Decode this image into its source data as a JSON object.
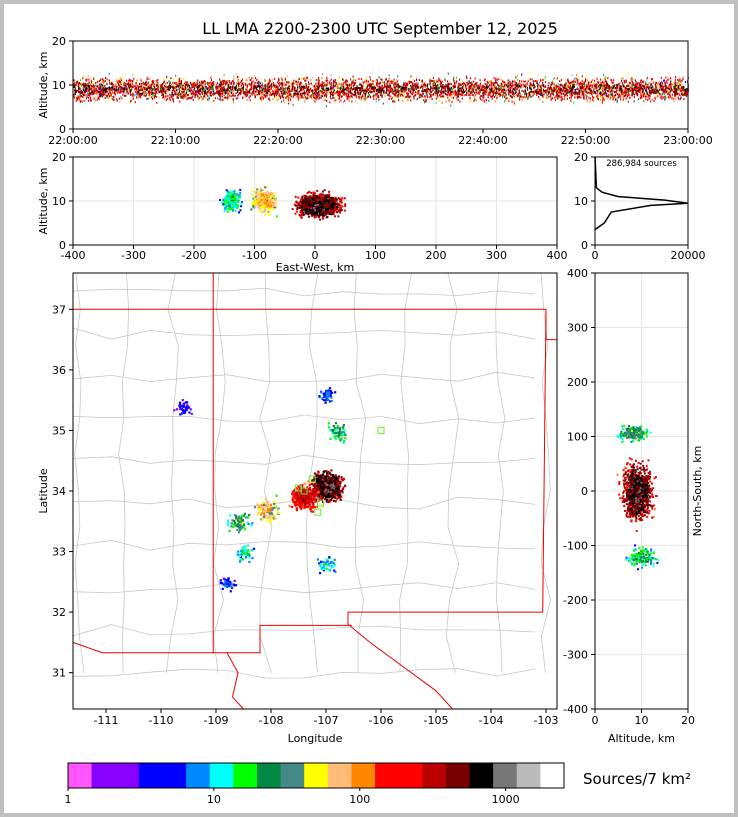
{
  "chart_data": {
    "type": "scatter",
    "title": "LL LMA 2200-2300 UTC September 12, 2025",
    "time_panel": {
      "ylabel": "Altitude, km",
      "x_ticks": [
        "22:00:00",
        "22:10:00",
        "22:20:00",
        "22:30:00",
        "22:40:00",
        "22:50:00",
        "23:00:00"
      ],
      "ylim": [
        0,
        20
      ],
      "y_ticks": [
        "0",
        "10",
        "20"
      ],
      "band_center_km": 9,
      "band_extent_km": [
        2,
        17
      ]
    },
    "ew_panel": {
      "xlabel": "East-West, km",
      "ylabel": "Altitude, km",
      "xlim": [
        -400,
        400
      ],
      "x_ticks": [
        "-400",
        "-300",
        "-200",
        "-100",
        "0",
        "100",
        "200",
        "300",
        "400"
      ],
      "ylim": [
        0,
        20
      ],
      "y_ticks": [
        "0",
        "10",
        "20"
      ],
      "clusters": [
        {
          "x_range": [
            -160,
            -120
          ],
          "z_center": 10,
          "density": 20
        },
        {
          "x_range": [
            -110,
            -60
          ],
          "z_center": 10,
          "density": 120
        },
        {
          "x_range": [
            -40,
            50
          ],
          "z_center": 9,
          "density": 1000
        }
      ]
    },
    "hist_panel": {
      "annotation": "286,984 sources",
      "xlim": [
        0,
        20000
      ],
      "x_ticks": [
        "0",
        "20000"
      ],
      "ylim": [
        0,
        20
      ],
      "y_ticks": [
        "0",
        "10",
        "20"
      ],
      "profile": [
        [
          0,
          3.5
        ],
        [
          2000,
          5
        ],
        [
          3500,
          7.5
        ],
        [
          12000,
          9
        ],
        [
          20000,
          9.5
        ],
        [
          15000,
          10.2
        ],
        [
          5000,
          11
        ],
        [
          1500,
          12
        ],
        [
          300,
          13
        ],
        [
          0,
          20
        ]
      ]
    },
    "map_panel": {
      "xlabel": "Longitude",
      "ylabel": "Latitude",
      "xlim": [
        -111.6,
        -102.8
      ],
      "ylim": [
        30.4,
        37.6
      ],
      "x_ticks": [
        "-111",
        "-110",
        "-109",
        "-108",
        "-107",
        "-106",
        "-105",
        "-104",
        "-103"
      ],
      "y_ticks": [
        "31",
        "32",
        "33",
        "34",
        "35",
        "36",
        "37"
      ],
      "clusters": [
        {
          "lon": -107.0,
          "lat": 34.1,
          "density": 1000
        },
        {
          "lon": -107.4,
          "lat": 33.9,
          "density": 400
        },
        {
          "lon": -108.1,
          "lat": 33.7,
          "density": 100
        },
        {
          "lon": -108.6,
          "lat": 33.5,
          "density": 40
        },
        {
          "lon": -106.8,
          "lat": 35.0,
          "density": 30
        },
        {
          "lon": -107.0,
          "lat": 35.6,
          "density": 8
        },
        {
          "lon": -108.5,
          "lat": 33.0,
          "density": 15
        },
        {
          "lon": -107.0,
          "lat": 32.8,
          "density": 15
        },
        {
          "lon": -108.8,
          "lat": 32.5,
          "density": 8
        },
        {
          "lon": -109.6,
          "lat": 35.4,
          "density": 5
        }
      ],
      "stations": [
        {
          "lon": -106.0,
          "lat": 35.0
        },
        {
          "lon": -107.4,
          "lat": 34.0
        },
        {
          "lon": -107.1,
          "lat": 33.8
        },
        {
          "lon": -107.15,
          "lat": 33.65
        },
        {
          "lon": -107.5,
          "lat": 34.05
        },
        {
          "lon": -107.25,
          "lat": 34.2
        }
      ]
    },
    "ns_panel": {
      "xlabel": "Altitude, km",
      "ylabel": "North-South, km",
      "xlim": [
        0,
        20
      ],
      "x_ticks": [
        "0",
        "10",
        "20"
      ],
      "ylim": [
        -400,
        400
      ],
      "y_ticks": [
        "-400",
        "-300",
        "-200",
        "-100",
        "0",
        "100",
        "200",
        "300",
        "400"
      ],
      "clusters": [
        {
          "z_center": 8,
          "y_range": [
            90,
            125
          ],
          "density": 40
        },
        {
          "z_center": 9,
          "y_range": [
            -60,
            60
          ],
          "density": 1000
        },
        {
          "z_center": 10,
          "y_range": [
            -140,
            -100
          ],
          "density": 30
        }
      ]
    },
    "colorbar": {
      "label": "Sources/7 km²",
      "tick_labels": [
        "1",
        "10",
        "100",
        "1000"
      ],
      "colors": [
        "#ff55ff",
        "#8800ff",
        "#8800ff",
        "#0000ff",
        "#0000ff",
        "#0088ff",
        "#00ffff",
        "#00ff00",
        "#008844",
        "#448888",
        "#ffff00",
        "#ffbb77",
        "#ff8800",
        "#ff0000",
        "#ff0000",
        "#bb0000",
        "#770000",
        "#000000",
        "#777777",
        "#bbbbbb",
        "#ffffff"
      ]
    }
  }
}
